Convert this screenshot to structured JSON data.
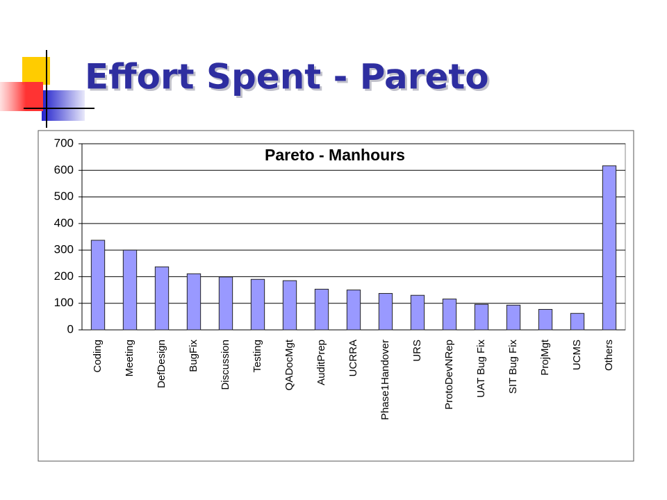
{
  "slide_title": "Effort Spent - Pareto",
  "chart_data": {
    "type": "bar",
    "title": "Pareto - Manhours",
    "categories": [
      "Coding",
      "Meeting",
      "DefDesign",
      "BugFix",
      "Discussion",
      "Testing",
      "QADocMgt",
      "AuditPrep",
      "UCRRA",
      "Phase1Handover",
      "URS",
      "ProtoDevNRep",
      "UAT Bug Fix",
      "SIT Bug Fix",
      "ProjMgt",
      "UCMS",
      "Others"
    ],
    "values": [
      337,
      300,
      237,
      211,
      199,
      190,
      185,
      153,
      150,
      137,
      130,
      116,
      96,
      93,
      77,
      62,
      617
    ],
    "color": "#9999ff",
    "ylim": [
      0,
      700
    ],
    "yticks": [
      0,
      100,
      200,
      300,
      400,
      500,
      600,
      700
    ],
    "grid": true
  }
}
